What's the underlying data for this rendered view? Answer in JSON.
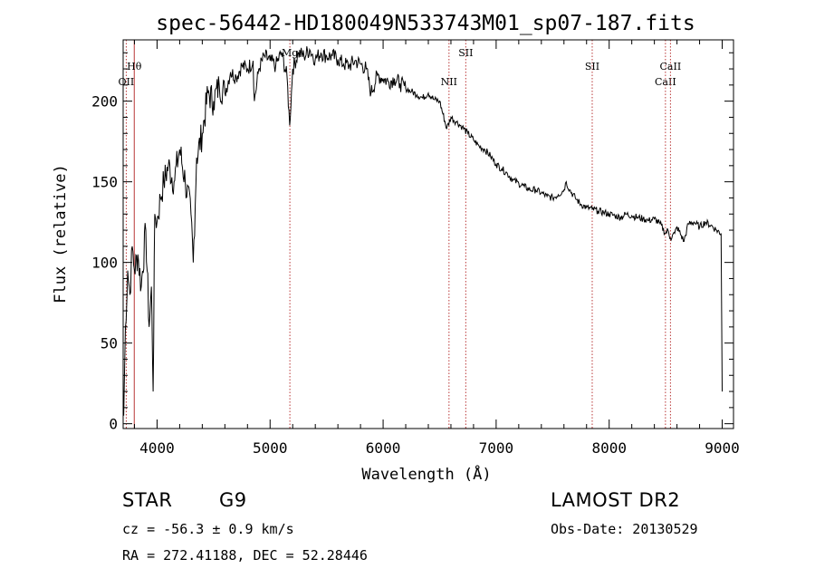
{
  "chart_data": {
    "type": "line",
    "title": "spec-56442-HD180049N533743M01_sp07-187.fits",
    "xlabel": "Wavelength (Å)",
    "ylabel": "Flux (relative)",
    "xlim": [
      3700,
      9100
    ],
    "ylim": [
      -3,
      238
    ],
    "x_ticks": [
      4000,
      5000,
      6000,
      7000,
      8000,
      9000
    ],
    "y_ticks": [
      0,
      50,
      100,
      150,
      200
    ],
    "x_tick_labels": [
      "4000",
      "5000",
      "6000",
      "7000",
      "8000",
      "9000"
    ],
    "y_tick_labels": [
      "0",
      "50",
      "100",
      "150",
      "200"
    ],
    "grid": false,
    "series": [
      {
        "x": [
          3705,
          3720,
          3740,
          3760,
          3780,
          3800,
          3830,
          3860,
          3900,
          3930,
          3950,
          3965,
          3980,
          4000,
          4030,
          4060,
          4100,
          4150,
          4200,
          4250,
          4300,
          4320,
          4350,
          4400,
          4450,
          4500,
          4550,
          4600,
          4650,
          4700,
          4750,
          4800,
          4850,
          4861,
          4900,
          4950,
          5000,
          5050,
          5100,
          5150,
          5173,
          5200,
          5250,
          5300,
          5350,
          5400,
          5450,
          5500,
          5550,
          5600,
          5650,
          5700,
          5750,
          5800,
          5850,
          5893,
          5950,
          6000,
          6050,
          6100,
          6150,
          6200,
          6250,
          6300,
          6350,
          6400,
          6450,
          6500,
          6563,
          6600,
          6650,
          6700,
          6750,
          6800,
          6850,
          6900,
          6950,
          7000,
          7050,
          7100,
          7150,
          7200,
          7250,
          7300,
          7350,
          7400,
          7450,
          7500,
          7550,
          7600,
          7620,
          7650,
          7700,
          7750,
          7800,
          7850,
          7900,
          7950,
          8000,
          8050,
          8100,
          8150,
          8200,
          8250,
          8300,
          8350,
          8400,
          8450,
          8498,
          8520,
          8542,
          8580,
          8600,
          8662,
          8700,
          8750,
          8800,
          8850,
          8900,
          8950,
          8990,
          9000
        ],
        "y": [
          5,
          60,
          95,
          80,
          110,
          95,
          105,
          85,
          120,
          60,
          85,
          20,
          130,
          125,
          140,
          150,
          160,
          150,
          170,
          150,
          130,
          100,
          165,
          180,
          205,
          200,
          210,
          205,
          218,
          215,
          222,
          220,
          225,
          200,
          220,
          228,
          225,
          222,
          230,
          215,
          185,
          220,
          230,
          228,
          232,
          226,
          230,
          228,
          228,
          226,
          223,
          222,
          225,
          223,
          220,
          205,
          216,
          214,
          212,
          214,
          211,
          208,
          206,
          204,
          202,
          205,
          201,
          200,
          183,
          190,
          187,
          184,
          180,
          176,
          172,
          170,
          166,
          161,
          158,
          155,
          151,
          149,
          147,
          145,
          145,
          143,
          141,
          140,
          142,
          145,
          150,
          145,
          140,
          136,
          134,
          133,
          132,
          131,
          130,
          129,
          128,
          130,
          129,
          128,
          127,
          126,
          127,
          124,
          118,
          120,
          115,
          118,
          122,
          113,
          124,
          125,
          122,
          125,
          123,
          120,
          118,
          20
        ]
      }
    ],
    "lines": [
      {
        "label": "Hθ",
        "x": 3798,
        "dashed": false,
        "label_row": 2
      },
      {
        "label": "OII",
        "x": 3727,
        "dashed": true,
        "label_row": 3
      },
      {
        "label": "Mg",
        "x": 5175,
        "dashed": true,
        "label_row": 1
      },
      {
        "label": "NII",
        "x": 6583,
        "dashed": true,
        "label_row": 3
      },
      {
        "label": "SII",
        "x": 6731,
        "dashed": true,
        "label_row": 1
      },
      {
        "label": "SII",
        "x": 7850,
        "dashed": true,
        "label_row": 2
      },
      {
        "label": "CaII",
        "x": 8498,
        "dashed": true,
        "label_row": 3
      },
      {
        "label": "CaII",
        "x": 8542,
        "dashed": true,
        "label_row": 2
      }
    ]
  },
  "info": {
    "object_class": "STAR",
    "subclass": "G9",
    "survey": "LAMOST DR2",
    "redshift_line": "cz = -56.3 ± 0.9 km/s",
    "obs_date": "Obs-Date: 20130529",
    "coords": "RA = 272.41188, DEC =  52.28446"
  }
}
